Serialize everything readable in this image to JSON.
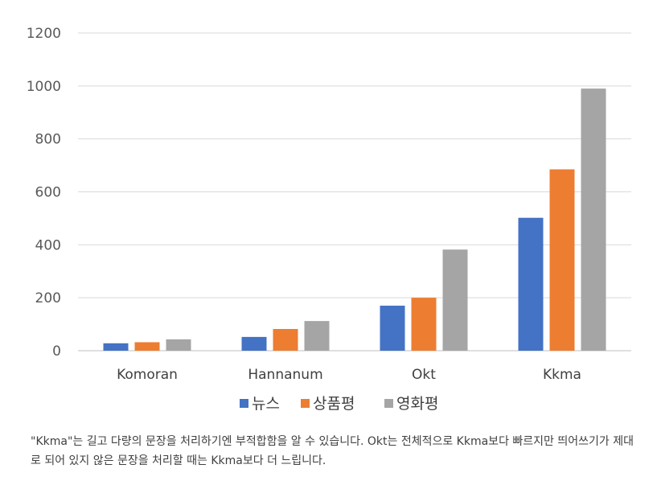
{
  "chart_data": {
    "type": "bar",
    "categories": [
      "Komoran",
      "Hannanum",
      "Okt",
      "Kkma"
    ],
    "series": [
      {
        "name": "뉴스",
        "color": "#4472C4",
        "values": [
          28,
          52,
          170,
          502
        ]
      },
      {
        "name": "상품평",
        "color": "#ED7D31",
        "values": [
          32,
          82,
          200,
          685
        ]
      },
      {
        "name": "영화평",
        "color": "#A5A5A5",
        "values": [
          43,
          112,
          382,
          990
        ]
      }
    ],
    "ylim": [
      0,
      1200
    ],
    "yticks": [
      0,
      200,
      400,
      600,
      800,
      1000,
      1200
    ],
    "grid": true,
    "legend": "bottom"
  },
  "caption": "\"Kkma\"는 길고 다량의 문장을 처리하기엔 부적합함을 알 수 있습니다. Okt는 전체적으로 Kkma보다 빠르지만 띄어쓰기가 제대로 되어 있지 않은 문장을 처리할 때는 Kkma보다 더 느립니다."
}
